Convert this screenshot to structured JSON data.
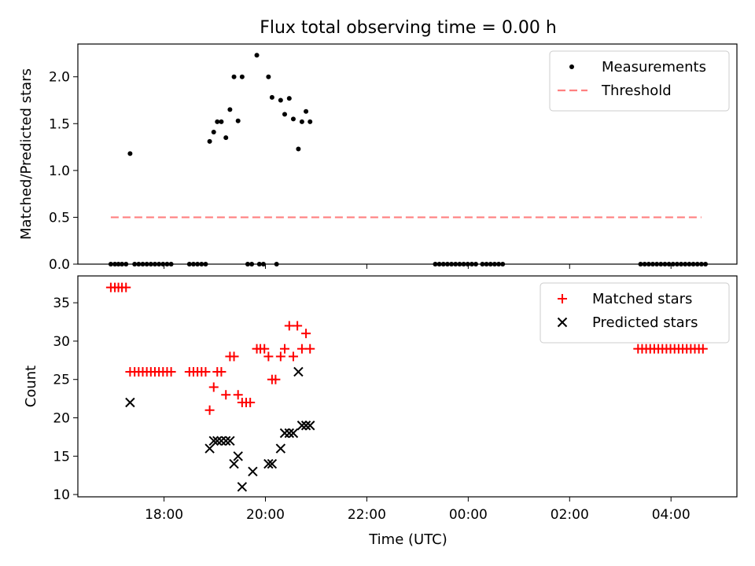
{
  "figure": {
    "title": "Flux total observing time = 0.00 h",
    "x_axis_label": "Time (UTC)"
  },
  "chart_data": [
    {
      "type": "scatter",
      "ylabel": "Matched/Predicted stars",
      "ylim": [
        0,
        2.35
      ],
      "xlim_hours": [
        16.3,
        29.3
      ],
      "y_ticks": [
        {
          "value": 0,
          "label": "0.0"
        },
        {
          "value": 0.5,
          "label": "0.5"
        },
        {
          "value": 1.0,
          "label": "1.0"
        },
        {
          "value": 1.5,
          "label": "1.5"
        },
        {
          "value": 2.0,
          "label": "2.0"
        }
      ],
      "legend": {
        "placement": "top-right",
        "entries": [
          {
            "label": "Measurements",
            "marker": "dot",
            "color": "#000000"
          },
          {
            "label": "Threshold",
            "marker": "dashed-line",
            "color": "#ff8080"
          }
        ]
      },
      "threshold": {
        "value": 0.5,
        "x_start": 16.95,
        "x_end": 28.6,
        "color": "#ff8080"
      },
      "series": [
        {
          "name": "Measurements",
          "color": "#000000",
          "points": [
            [
              16.95,
              0
            ],
            [
              17.03,
              0
            ],
            [
              17.1,
              0
            ],
            [
              17.17,
              0
            ],
            [
              17.25,
              0
            ],
            [
              17.42,
              0
            ],
            [
              17.5,
              0
            ],
            [
              17.58,
              0
            ],
            [
              17.66,
              0
            ],
            [
              17.74,
              0
            ],
            [
              17.82,
              0
            ],
            [
              17.9,
              0
            ],
            [
              17.98,
              0
            ],
            [
              18.06,
              0
            ],
            [
              18.14,
              0
            ],
            [
              18.5,
              0
            ],
            [
              18.58,
              0
            ],
            [
              18.66,
              0
            ],
            [
              18.74,
              0
            ],
            [
              18.82,
              0
            ],
            [
              19.65,
              0
            ],
            [
              19.73,
              0
            ],
            [
              19.88,
              0
            ],
            [
              19.96,
              0
            ],
            [
              20.22,
              0
            ],
            [
              23.35,
              0
            ],
            [
              23.43,
              0
            ],
            [
              23.51,
              0
            ],
            [
              23.59,
              0
            ],
            [
              23.67,
              0
            ],
            [
              23.75,
              0
            ],
            [
              23.83,
              0
            ],
            [
              23.91,
              0
            ],
            [
              23.99,
              0
            ],
            [
              24.07,
              0
            ],
            [
              24.15,
              0
            ],
            [
              24.28,
              0
            ],
            [
              24.36,
              0
            ],
            [
              24.44,
              0
            ],
            [
              24.52,
              0
            ],
            [
              24.6,
              0
            ],
            [
              24.68,
              0
            ],
            [
              27.4,
              0
            ],
            [
              27.48,
              0
            ],
            [
              27.56,
              0
            ],
            [
              27.64,
              0
            ],
            [
              27.72,
              0
            ],
            [
              27.8,
              0
            ],
            [
              27.88,
              0
            ],
            [
              27.96,
              0
            ],
            [
              28.04,
              0
            ],
            [
              28.12,
              0
            ],
            [
              28.2,
              0
            ],
            [
              28.28,
              0
            ],
            [
              28.36,
              0
            ],
            [
              28.44,
              0
            ],
            [
              28.52,
              0
            ],
            [
              28.6,
              0
            ],
            [
              28.68,
              0
            ],
            [
              17.33,
              1.18
            ],
            [
              18.9,
              1.31
            ],
            [
              18.98,
              1.41
            ],
            [
              19.05,
              1.52
            ],
            [
              19.13,
              1.52
            ],
            [
              19.22,
              1.35
            ],
            [
              19.3,
              1.65
            ],
            [
              19.38,
              2.0
            ],
            [
              19.46,
              1.53
            ],
            [
              19.54,
              2.0
            ],
            [
              19.83,
              2.23
            ],
            [
              20.06,
              2.0
            ],
            [
              20.13,
              1.78
            ],
            [
              20.3,
              1.75
            ],
            [
              20.38,
              1.6
            ],
            [
              20.47,
              1.77
            ],
            [
              20.55,
              1.55
            ],
            [
              20.65,
              1.23
            ],
            [
              20.72,
              1.52
            ],
            [
              20.8,
              1.63
            ],
            [
              20.88,
              1.52
            ]
          ]
        }
      ]
    },
    {
      "type": "scatter",
      "ylabel": "Count",
      "ylim": [
        9.7,
        38.5
      ],
      "xlim_hours": [
        16.3,
        29.3
      ],
      "y_ticks": [
        {
          "value": 10,
          "label": "10"
        },
        {
          "value": 15,
          "label": "15"
        },
        {
          "value": 20,
          "label": "20"
        },
        {
          "value": 25,
          "label": "25"
        },
        {
          "value": 30,
          "label": "30"
        },
        {
          "value": 35,
          "label": "35"
        }
      ],
      "x_ticks": [
        {
          "value": 18,
          "label": "18:00"
        },
        {
          "value": 20,
          "label": "20:00"
        },
        {
          "value": 22,
          "label": "22:00"
        },
        {
          "value": 24,
          "label": "00:00"
        },
        {
          "value": 26,
          "label": "02:00"
        },
        {
          "value": 28,
          "label": "04:00"
        }
      ],
      "legend": {
        "placement": "top-right",
        "entries": [
          {
            "label": "Matched stars",
            "marker": "plus",
            "color": "#ff0000"
          },
          {
            "label": "Predicted stars",
            "marker": "x",
            "color": "#000000"
          }
        ]
      },
      "series": [
        {
          "name": "Matched stars",
          "marker": "plus",
          "color": "#ff0000",
          "points": [
            [
              16.95,
              37
            ],
            [
              17.03,
              37
            ],
            [
              17.1,
              37
            ],
            [
              17.17,
              37
            ],
            [
              17.25,
              37
            ],
            [
              17.33,
              26
            ],
            [
              17.42,
              26
            ],
            [
              17.5,
              26
            ],
            [
              17.58,
              26
            ],
            [
              17.66,
              26
            ],
            [
              17.74,
              26
            ],
            [
              17.82,
              26
            ],
            [
              17.9,
              26
            ],
            [
              17.98,
              26
            ],
            [
              18.06,
              26
            ],
            [
              18.14,
              26
            ],
            [
              18.5,
              26
            ],
            [
              18.58,
              26
            ],
            [
              18.66,
              26
            ],
            [
              18.74,
              26
            ],
            [
              18.82,
              26
            ],
            [
              18.9,
              21
            ],
            [
              18.98,
              24
            ],
            [
              19.05,
              26
            ],
            [
              19.13,
              26
            ],
            [
              19.22,
              23
            ],
            [
              19.3,
              28
            ],
            [
              19.38,
              28
            ],
            [
              19.46,
              23
            ],
            [
              19.54,
              22
            ],
            [
              19.62,
              22
            ],
            [
              19.7,
              22
            ],
            [
              19.83,
              29
            ],
            [
              19.9,
              29
            ],
            [
              19.98,
              29
            ],
            [
              20.06,
              28
            ],
            [
              20.13,
              25
            ],
            [
              20.2,
              25
            ],
            [
              20.3,
              28
            ],
            [
              20.38,
              29
            ],
            [
              20.47,
              32
            ],
            [
              20.55,
              28
            ],
            [
              20.63,
              32
            ],
            [
              20.72,
              29
            ],
            [
              20.8,
              31
            ],
            [
              20.88,
              29
            ],
            [
              27.35,
              29
            ],
            [
              27.43,
              29
            ],
            [
              27.51,
              29
            ],
            [
              27.59,
              29
            ],
            [
              27.67,
              29
            ],
            [
              27.75,
              29
            ],
            [
              27.83,
              29
            ],
            [
              27.91,
              29
            ],
            [
              27.99,
              29
            ],
            [
              28.07,
              29
            ],
            [
              28.15,
              29
            ],
            [
              28.23,
              29
            ],
            [
              28.31,
              29
            ],
            [
              28.39,
              29
            ],
            [
              28.47,
              29
            ],
            [
              28.55,
              29
            ],
            [
              28.63,
              29
            ]
          ]
        },
        {
          "name": "Predicted stars",
          "marker": "x",
          "color": "#000000",
          "points": [
            [
              17.33,
              22
            ],
            [
              18.9,
              16
            ],
            [
              18.98,
              17
            ],
            [
              19.05,
              17
            ],
            [
              19.13,
              17
            ],
            [
              19.22,
              17
            ],
            [
              19.3,
              17
            ],
            [
              19.38,
              14
            ],
            [
              19.46,
              15
            ],
            [
              19.54,
              11
            ],
            [
              19.75,
              13
            ],
            [
              20.06,
              14
            ],
            [
              20.13,
              14
            ],
            [
              20.3,
              16
            ],
            [
              20.38,
              18
            ],
            [
              20.47,
              18
            ],
            [
              20.55,
              18
            ],
            [
              20.65,
              26
            ],
            [
              20.72,
              19
            ],
            [
              20.8,
              19
            ],
            [
              20.88,
              19
            ]
          ]
        }
      ]
    }
  ]
}
